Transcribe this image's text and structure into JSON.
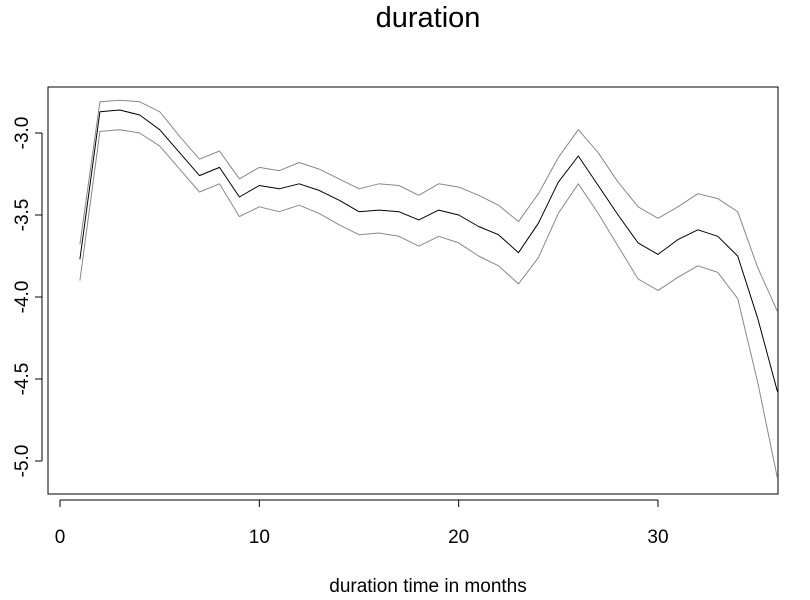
{
  "chart_data": {
    "type": "line",
    "title": "duration",
    "xlabel": "duration time in months",
    "ylabel": "",
    "xlim": [
      0,
      37
    ],
    "ylim": [
      -5.1,
      -2.78
    ],
    "x_ticks": [
      0,
      10,
      20,
      30
    ],
    "y_ticks": [
      -5.0,
      -4.5,
      -4.0,
      -3.5,
      -3.0
    ],
    "y_tick_labels": [
      "-5.0",
      "-4.5",
      "-4.0",
      "-3.5",
      "-3.0"
    ],
    "grid": false,
    "legend": "none",
    "x": [
      1,
      2,
      3,
      4,
      5,
      6,
      7,
      8,
      9,
      10,
      11,
      12,
      13,
      14,
      15,
      16,
      17,
      18,
      19,
      20,
      21,
      22,
      23,
      24,
      25,
      26,
      27,
      28,
      29,
      30,
      31,
      32,
      33,
      34,
      35,
      36
    ],
    "series": [
      {
        "color": "#888888",
        "values": [
          -3.68,
          -2.81,
          -2.8,
          -2.81,
          -2.87,
          -3.02,
          -3.16,
          -3.11,
          -3.28,
          -3.21,
          -3.23,
          -3.18,
          -3.22,
          -3.28,
          -3.34,
          -3.31,
          -3.32,
          -3.38,
          -3.31,
          -3.33,
          -3.38,
          -3.44,
          -3.54,
          -3.37,
          -3.15,
          -2.98,
          -3.12,
          -3.3,
          -3.45,
          -3.52,
          -3.45,
          -3.37,
          -3.4,
          -3.48,
          -3.82,
          -4.09
        ]
      },
      {
        "color": "#000000",
        "values": [
          -3.77,
          -2.87,
          -2.86,
          -2.89,
          -2.98,
          -3.12,
          -3.26,
          -3.21,
          -3.39,
          -3.32,
          -3.34,
          -3.31,
          -3.35,
          -3.41,
          -3.48,
          -3.47,
          -3.48,
          -3.53,
          -3.47,
          -3.5,
          -3.57,
          -3.62,
          -3.73,
          -3.55,
          -3.3,
          -3.14,
          -3.32,
          -3.5,
          -3.67,
          -3.74,
          -3.65,
          -3.59,
          -3.63,
          -3.75,
          -4.13,
          -4.58
        ]
      },
      {
        "color": "#888888",
        "values": [
          -3.9,
          -2.99,
          -2.98,
          -3.0,
          -3.08,
          -3.22,
          -3.36,
          -3.31,
          -3.51,
          -3.45,
          -3.48,
          -3.44,
          -3.49,
          -3.56,
          -3.62,
          -3.61,
          -3.63,
          -3.69,
          -3.63,
          -3.67,
          -3.75,
          -3.81,
          -3.92,
          -3.76,
          -3.49,
          -3.31,
          -3.49,
          -3.69,
          -3.89,
          -3.96,
          -3.88,
          -3.81,
          -3.85,
          -4.01,
          -4.52,
          -5.11
        ]
      }
    ]
  }
}
